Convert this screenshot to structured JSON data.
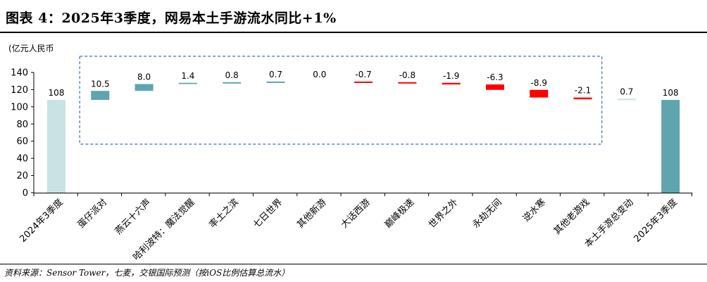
{
  "header": {
    "title": "图表 4：2025年3季度，网易本土手游流水同比+1%",
    "unit": "(亿元人民币"
  },
  "footer": {
    "source": "资料来源：Sensor Tower，七麦，交银国际预测（按iOS比例估算总流水）"
  },
  "colors": {
    "start_bar": "#c9e2e4",
    "end_bar": "#5fa4ae",
    "increase": "#5fa4ae",
    "decrease": "#ff0000",
    "box": "#3f6fa8"
  },
  "chart_data": {
    "type": "bar",
    "subtype": "waterfall",
    "ylim": [
      0,
      140
    ],
    "yticks": [
      0,
      20,
      40,
      60,
      80,
      100,
      120,
      140
    ],
    "grid": false,
    "start": {
      "label": "2024年3季度",
      "value": 108,
      "value_label": "108"
    },
    "changes": [
      {
        "label": "蛋仔派对",
        "value": 10.5,
        "value_label": "10.5"
      },
      {
        "label": "燕云十六声",
        "value": 8.0,
        "value_label": "8.0"
      },
      {
        "label": "哈利波特：魔法觉醒",
        "value": 1.4,
        "value_label": "1.4"
      },
      {
        "label": "率土之滨",
        "value": 0.8,
        "value_label": "0.8"
      },
      {
        "label": "七日世界",
        "value": 0.7,
        "value_label": "0.7"
      },
      {
        "label": "其他新游",
        "value": 0.0,
        "value_label": "0.0"
      },
      {
        "label": "大话西游",
        "value": -0.7,
        "value_label": "-0.7"
      },
      {
        "label": "巅峰极速",
        "value": -0.8,
        "value_label": "-0.8"
      },
      {
        "label": "世界之外",
        "value": -1.9,
        "value_label": "-1.9"
      },
      {
        "label": "永劫无间",
        "value": -6.3,
        "value_label": "-6.3"
      },
      {
        "label": "逆水寒",
        "value": -8.9,
        "value_label": "-8.9"
      },
      {
        "label": "其他老游戏",
        "value": -2.1,
        "value_label": "-2.1"
      },
      {
        "label": "本土手游总变动",
        "value": 0.7,
        "value_label": "0.7"
      }
    ],
    "end": {
      "label": "2025年3季度",
      "value": 108,
      "value_label": "108"
    }
  }
}
